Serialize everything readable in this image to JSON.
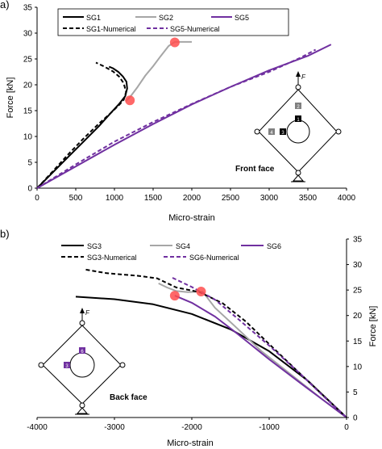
{
  "chart_data": [
    {
      "type": "line",
      "panel_label": "a)",
      "xlabel": "Micro-strain",
      "ylabel": "Force [kN]",
      "xlim": [
        0,
        4000
      ],
      "ylim": [
        0,
        35
      ],
      "xticks": [
        0,
        500,
        1000,
        1500,
        2000,
        2500,
        3000,
        3500,
        4000
      ],
      "yticks": [
        0,
        5,
        10,
        15,
        20,
        25,
        30,
        35
      ],
      "grid": false,
      "legend_position": "top",
      "annotation": "Front face",
      "load_label": "F",
      "gauge_labels": [
        "1",
        "2",
        "3",
        "4"
      ],
      "series": [
        {
          "name": "SG1",
          "color": "#000000",
          "style": "solid",
          "width": 2,
          "points": [
            [
              0,
              0
            ],
            [
              200,
              3
            ],
            [
              400,
              6
            ],
            [
              600,
              9
            ],
            [
              800,
              12
            ],
            [
              950,
              14.5
            ],
            [
              1060,
              16.3
            ],
            [
              1140,
              17.8
            ],
            [
              1165,
              19.3
            ],
            [
              1155,
              20.6
            ],
            [
              1110,
              21.6
            ],
            [
              1050,
              22.5
            ],
            [
              980,
              23.2
            ],
            [
              930,
              23.5
            ]
          ]
        },
        {
          "name": "SG2",
          "color": "#a6a6a6",
          "style": "solid",
          "width": 2,
          "points": [
            [
              1145,
              16.8
            ],
            [
              1200,
              17.6
            ],
            [
              1300,
              19.6
            ],
            [
              1400,
              21.8
            ],
            [
              1500,
              23.6
            ],
            [
              1600,
              25.6
            ],
            [
              1700,
              27.5
            ],
            [
              1780,
              28.3
            ],
            [
              2000,
              28.3
            ]
          ]
        },
        {
          "name": "SG5",
          "color": "#7030a0",
          "style": "solid",
          "width": 2,
          "points": [
            [
              0,
              0
            ],
            [
              500,
              4.2
            ],
            [
              1000,
              8.4
            ],
            [
              1500,
              12.4
            ],
            [
              2000,
              16.2
            ],
            [
              2500,
              19.6
            ],
            [
              3000,
              22.8
            ],
            [
              3500,
              25.6
            ],
            [
              3800,
              27.8
            ]
          ]
        },
        {
          "name": "SG1-Numerical",
          "color": "#000000",
          "style": "dashed",
          "width": 2,
          "points": [
            [
              0,
              0
            ],
            [
              200,
              3.2
            ],
            [
              400,
              6.5
            ],
            [
              600,
              9.6
            ],
            [
              800,
              12.5
            ],
            [
              950,
              14.5
            ],
            [
              1060,
              16.1
            ],
            [
              1120,
              17.1
            ],
            [
              1150,
              18.6
            ],
            [
              1120,
              20.3
            ],
            [
              1060,
              21.6
            ],
            [
              980,
              22.6
            ],
            [
              860,
              23.6
            ],
            [
              760,
              24.3
            ]
          ]
        },
        {
          "name": "SG5-Numerical",
          "color": "#7030a0",
          "style": "dashed",
          "width": 2,
          "points": [
            [
              0,
              0
            ],
            [
              500,
              4.6
            ],
            [
              1000,
              9
            ],
            [
              1500,
              12.8
            ],
            [
              2000,
              16.3
            ],
            [
              2500,
              19.6
            ],
            [
              3000,
              22.5
            ],
            [
              3400,
              25.2
            ],
            [
              3600,
              26.8
            ]
          ]
        }
      ],
      "markers": [
        {
          "x": 1200,
          "y": 17,
          "color": "#ff4d4d"
        },
        {
          "x": 1780,
          "y": 28.2,
          "color": "#ff4d4d"
        }
      ]
    },
    {
      "type": "line",
      "panel_label": "b)",
      "xlabel": "Micro-strain",
      "ylabel": "Force [kN]",
      "xlim": [
        -4000,
        0
      ],
      "ylim": [
        0,
        35
      ],
      "xticks": [
        -4000,
        -3000,
        -2000,
        -1000,
        0
      ],
      "yticks": [
        0,
        5,
        10,
        15,
        20,
        25,
        30,
        35
      ],
      "grid": false,
      "legend_position": "top",
      "annotation": "Back face",
      "load_label": "F",
      "gauge_labels": [
        "6",
        "3"
      ],
      "series": [
        {
          "name": "SG3",
          "color": "#000000",
          "style": "solid",
          "width": 2,
          "points": [
            [
              -3500,
              23.7
            ],
            [
              -3000,
              23.2
            ],
            [
              -2500,
              22.2
            ],
            [
              -2000,
              20.3
            ],
            [
              -1500,
              17.3
            ],
            [
              -1000,
              13
            ],
            [
              -500,
              7.2
            ],
            [
              0,
              0
            ]
          ]
        },
        {
          "name": "SG4",
          "color": "#a6a6a6",
          "style": "solid",
          "width": 2,
          "points": [
            [
              -2430,
              26.3
            ],
            [
              -2320,
              25.5
            ],
            [
              -2200,
              24.8
            ],
            [
              -2050,
              24.6
            ],
            [
              -1860,
              24.7
            ],
            [
              -1700,
              21.5
            ],
            [
              -1450,
              18
            ],
            [
              -1100,
              13
            ],
            [
              -700,
              8.2
            ],
            [
              -300,
              3.4
            ],
            [
              0,
              0
            ]
          ]
        },
        {
          "name": "SG6",
          "color": "#7030a0",
          "style": "solid",
          "width": 2,
          "points": [
            [
              -2220,
              23.9
            ],
            [
              -2000,
              22.5
            ],
            [
              -1700,
              19.8
            ],
            [
              -1400,
              16.3
            ],
            [
              -1000,
              11.4
            ],
            [
              -600,
              6.8
            ],
            [
              -300,
              3.4
            ],
            [
              0,
              0
            ]
          ]
        },
        {
          "name": "SG3-Numerical",
          "color": "#000000",
          "style": "dashed",
          "width": 2,
          "points": [
            [
              -3370,
              29
            ],
            [
              -3100,
              28.3
            ],
            [
              -2700,
              27.8
            ],
            [
              -2450,
              27.3
            ],
            [
              -2200,
              25.5
            ],
            [
              -1900,
              24.6
            ],
            [
              -1600,
              22.4
            ],
            [
              -1300,
              18.8
            ],
            [
              -1000,
              14.4
            ],
            [
              -600,
              8.6
            ],
            [
              -300,
              4.3
            ],
            [
              0,
              0
            ]
          ]
        },
        {
          "name": "SG6-Numerical",
          "color": "#7030a0",
          "style": "dashed",
          "width": 2,
          "points": [
            [
              -2250,
              27.4
            ],
            [
              -2000,
              25.6
            ],
            [
              -1700,
              23.1
            ],
            [
              -1400,
              19.3
            ],
            [
              -1000,
              14.1
            ],
            [
              -600,
              8.6
            ],
            [
              -300,
              4.2
            ],
            [
              0,
              0
            ]
          ]
        }
      ],
      "markers": [
        {
          "x": -2220,
          "y": 23.9,
          "color": "#ff4d4d"
        },
        {
          "x": -1880,
          "y": 24.7,
          "color": "#ff4d4d"
        }
      ]
    }
  ]
}
